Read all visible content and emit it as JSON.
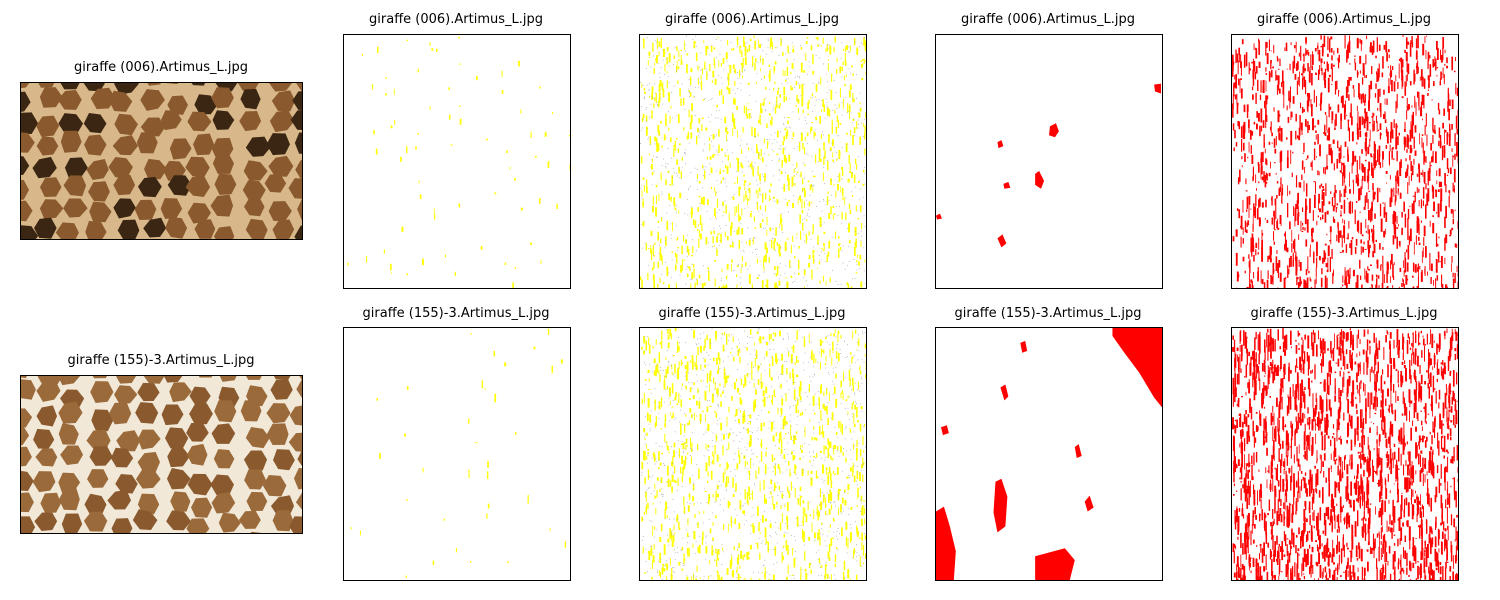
{
  "rows": [
    {
      "titles": [
        "giraffe (006).Artimus_L.jpg",
        "giraffe (006).Artimus_L.jpg",
        "giraffe (006).Artimus_L.jpg",
        "giraffe (006).Artimus_L.jpg",
        "giraffe (006).Artimus_L.jpg"
      ]
    },
    {
      "titles": [
        "giraffe (155)-3.Artimus_L.jpg",
        "giraffe (155)-3.Artimus_L.jpg",
        "giraffe (155)-3.Artimus_L.jpg",
        "giraffe (155)-3.Artimus_L.jpg",
        "giraffe (155)-3.Artimus_L.jpg"
      ]
    }
  ],
  "colors": {
    "yellow_mask": "#ffff00",
    "red_mask": "#ff0000",
    "photo_dark": "#3a2612",
    "photo_tan": "#d8b88a",
    "photo_cream": "#f2e8d8",
    "photo_brown": "#8a5a2e"
  }
}
